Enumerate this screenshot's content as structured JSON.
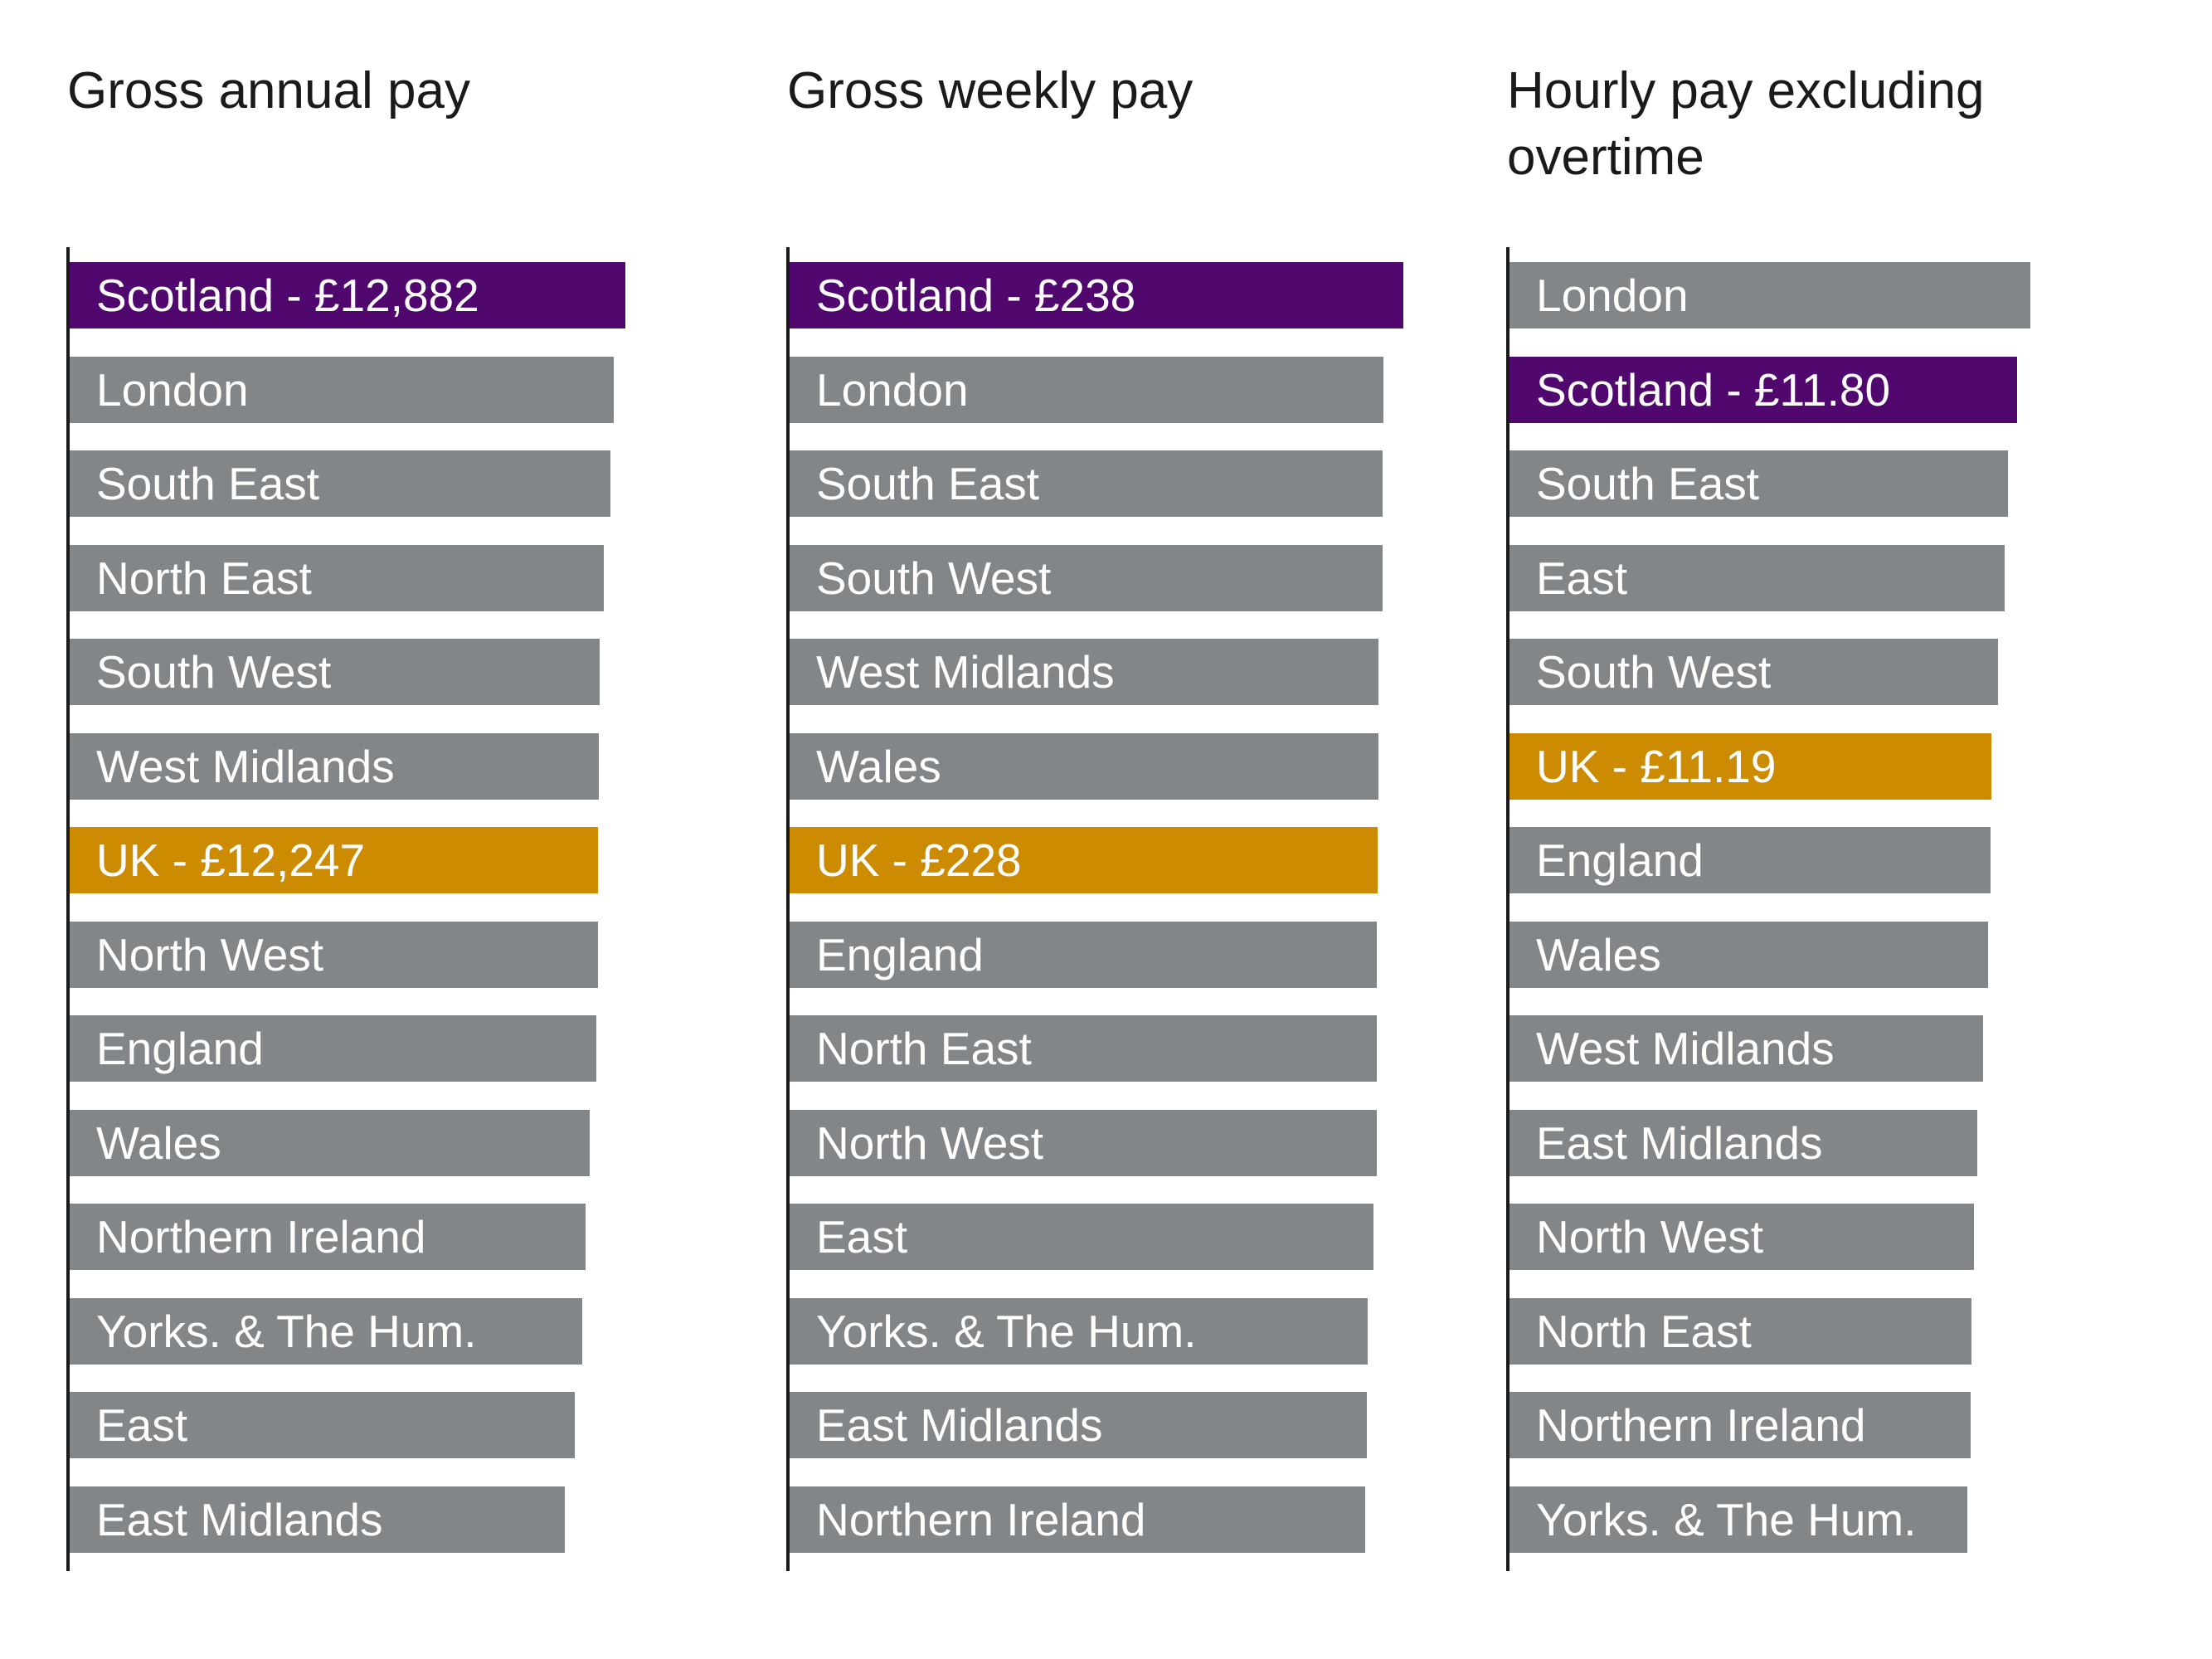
{
  "colors": {
    "default": "#838689",
    "scotland": "#50086f",
    "uk": "#cc8b00"
  },
  "chart_data": [
    {
      "type": "bar",
      "orientation": "horizontal",
      "title": "Gross annual pay",
      "unit": "£",
      "categories": [
        "Scotland",
        "London",
        "South East",
        "North East",
        "South West",
        "West Midlands",
        "UK",
        "North West",
        "England",
        "Wales",
        "Northern Ireland",
        "Yorks. & The Hum.",
        "East",
        "East Midlands"
      ],
      "labels": [
        "Scotland  - £12,882",
        "London",
        "South East",
        "North East",
        "South West",
        "West Midlands",
        "UK - £12,247",
        "North West",
        "England",
        "Wales",
        "Northern Ireland",
        "Yorks. & The Hum.",
        "East",
        "East Midlands"
      ],
      "values": [
        12882,
        12620,
        12540,
        12380,
        12290,
        12270,
        12247,
        12240,
        12200,
        12050,
        11950,
        11890,
        11700,
        11470
      ],
      "highlight": [
        "scotland",
        null,
        null,
        null,
        null,
        null,
        "uk",
        null,
        null,
        null,
        null,
        null,
        null,
        null
      ],
      "xlim": [
        0,
        12882
      ]
    },
    {
      "type": "bar",
      "orientation": "horizontal",
      "title": "Gross weekly pay",
      "unit": "£",
      "categories": [
        "Scotland",
        "London",
        "South East",
        "South West",
        "West Midlands",
        "Wales",
        "UK",
        "England",
        "North East",
        "North West",
        "East",
        "Yorks. & The Hum.",
        "East Midlands",
        "Northern Ireland"
      ],
      "labels": [
        "Scotland - £238",
        "London",
        "South East",
        "South West",
        "West Midlands",
        "Wales",
        "UK - £228",
        "England",
        "North East",
        "North West",
        "East",
        "Yorks. & The Hum.",
        "East Midlands",
        "Northern Ireland"
      ],
      "values": [
        238,
        230.3,
        230,
        229.9,
        228.5,
        228.4,
        228,
        227.8,
        227.6,
        227.6,
        226.5,
        224.3,
        223.8,
        223.3
      ],
      "highlight": [
        "scotland",
        null,
        null,
        null,
        null,
        null,
        "uk",
        null,
        null,
        null,
        null,
        null,
        null,
        null
      ],
      "xlim": [
        0,
        238
      ]
    },
    {
      "type": "bar",
      "orientation": "horizontal",
      "title": "Hourly pay excluding overtime",
      "unit": "£",
      "categories": [
        "London",
        "Scotland",
        "South East",
        "East",
        "South West",
        "UK",
        "England",
        "Wales",
        "West Midlands",
        "East Midlands",
        "North West",
        "North East",
        "Northern Ireland",
        "Yorks. & The Hum."
      ],
      "labels": [
        "London",
        "Scotland - £11.80",
        "South East",
        "East",
        "South West",
        "UK - £11.19",
        "England",
        "Wales",
        "West Midlands",
        "East Midlands",
        "North West",
        "North East",
        "Northern Ireland",
        "Yorks. & The Hum."
      ],
      "values": [
        12.1,
        11.8,
        11.58,
        11.5,
        11.35,
        11.19,
        11.17,
        11.12,
        11.0,
        10.86,
        10.79,
        10.73,
        10.71,
        10.63
      ],
      "highlight": [
        null,
        "scotland",
        null,
        null,
        null,
        "uk",
        null,
        null,
        null,
        null,
        null,
        null,
        null,
        null
      ],
      "xlim": [
        0,
        12.1
      ]
    }
  ]
}
